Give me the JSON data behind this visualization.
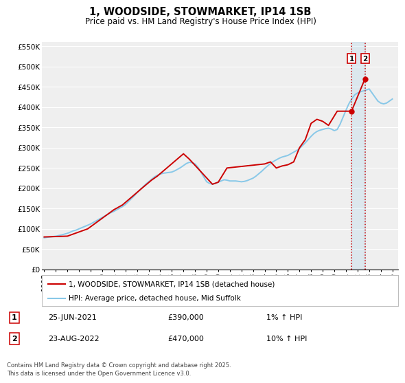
{
  "title": "1, WOODSIDE, STOWMARKET, IP14 1SB",
  "subtitle": "Price paid vs. HM Land Registry's House Price Index (HPI)",
  "xlim": [
    1994.8,
    2025.5
  ],
  "ylim": [
    0,
    560000
  ],
  "yticks": [
    0,
    50000,
    100000,
    150000,
    200000,
    250000,
    300000,
    350000,
    400000,
    450000,
    500000,
    550000
  ],
  "ytick_labels": [
    "£0",
    "£50K",
    "£100K",
    "£150K",
    "£200K",
    "£250K",
    "£300K",
    "£350K",
    "£400K",
    "£450K",
    "£500K",
    "£550K"
  ],
  "xticks": [
    1995,
    1996,
    1997,
    1998,
    1999,
    2000,
    2001,
    2002,
    2003,
    2004,
    2005,
    2006,
    2007,
    2008,
    2009,
    2010,
    2011,
    2012,
    2013,
    2014,
    2015,
    2016,
    2017,
    2018,
    2019,
    2020,
    2021,
    2022,
    2023,
    2024,
    2025
  ],
  "background_color": "#ffffff",
  "plot_bg_color": "#efefef",
  "grid_color": "#ffffff",
  "red_line_color": "#cc0000",
  "blue_line_color": "#88c8e8",
  "vline_color": "#cc0000",
  "event1_x": 2021.483,
  "event1_y": 390000,
  "event1_label": "1",
  "event2_x": 2022.644,
  "event2_y": 470000,
  "event2_label": "2",
  "legend_label_red": "1, WOODSIDE, STOWMARKET, IP14 1SB (detached house)",
  "legend_label_blue": "HPI: Average price, detached house, Mid Suffolk",
  "table_row1": [
    "1",
    "25-JUN-2021",
    "£390,000",
    "1% ↑ HPI"
  ],
  "table_row2": [
    "2",
    "23-AUG-2022",
    "£470,000",
    "10% ↑ HPI"
  ],
  "footnote": "Contains HM Land Registry data © Crown copyright and database right 2025.\nThis data is licensed under the Open Government Licence v3.0.",
  "hpi_x": [
    1995.0,
    1995.25,
    1995.5,
    1995.75,
    1996.0,
    1996.25,
    1996.5,
    1996.75,
    1997.0,
    1997.25,
    1997.5,
    1997.75,
    1998.0,
    1998.25,
    1998.5,
    1998.75,
    1999.0,
    1999.25,
    1999.5,
    1999.75,
    2000.0,
    2000.25,
    2000.5,
    2000.75,
    2001.0,
    2001.25,
    2001.5,
    2001.75,
    2002.0,
    2002.25,
    2002.5,
    2002.75,
    2003.0,
    2003.25,
    2003.5,
    2003.75,
    2004.0,
    2004.25,
    2004.5,
    2004.75,
    2005.0,
    2005.25,
    2005.5,
    2005.75,
    2006.0,
    2006.25,
    2006.5,
    2006.75,
    2007.0,
    2007.25,
    2007.5,
    2007.75,
    2008.0,
    2008.25,
    2008.5,
    2008.75,
    2009.0,
    2009.25,
    2009.5,
    2009.75,
    2010.0,
    2010.25,
    2010.5,
    2010.75,
    2011.0,
    2011.25,
    2011.5,
    2011.75,
    2012.0,
    2012.25,
    2012.5,
    2012.75,
    2013.0,
    2013.25,
    2013.5,
    2013.75,
    2014.0,
    2014.25,
    2014.5,
    2014.75,
    2015.0,
    2015.25,
    2015.5,
    2015.75,
    2016.0,
    2016.25,
    2016.5,
    2016.75,
    2017.0,
    2017.25,
    2017.5,
    2017.75,
    2018.0,
    2018.25,
    2018.5,
    2018.75,
    2019.0,
    2019.25,
    2019.5,
    2019.75,
    2020.0,
    2020.25,
    2020.5,
    2020.75,
    2021.0,
    2021.25,
    2021.5,
    2021.75,
    2022.0,
    2022.25,
    2022.5,
    2022.75,
    2023.0,
    2023.25,
    2023.5,
    2023.75,
    2024.0,
    2024.25,
    2024.5,
    2024.75,
    2025.0
  ],
  "hpi_y": [
    78000,
    79000,
    80000,
    81000,
    82000,
    83500,
    85000,
    87000,
    89000,
    92000,
    95000,
    97000,
    100000,
    103000,
    106000,
    109000,
    112000,
    116000,
    120000,
    124000,
    128000,
    132000,
    136000,
    140000,
    143000,
    147000,
    151000,
    155000,
    160000,
    167000,
    174000,
    181000,
    189000,
    196000,
    203000,
    210000,
    216000,
    222000,
    228000,
    232000,
    235000,
    237000,
    238000,
    239000,
    240000,
    243000,
    247000,
    251000,
    256000,
    261000,
    264000,
    263000,
    260000,
    252000,
    240000,
    228000,
    216000,
    212000,
    210000,
    212000,
    215000,
    218000,
    221000,
    220000,
    218000,
    218000,
    218000,
    217000,
    216000,
    217000,
    219000,
    222000,
    225000,
    230000,
    236000,
    242000,
    249000,
    255000,
    261000,
    266000,
    270000,
    274000,
    277000,
    279000,
    281000,
    285000,
    289000,
    293000,
    298000,
    305000,
    312000,
    320000,
    328000,
    335000,
    340000,
    343000,
    345000,
    347000,
    348000,
    346000,
    342000,
    345000,
    358000,
    375000,
    392000,
    408000,
    420000,
    430000,
    435000,
    438000,
    440000,
    442000,
    445000,
    435000,
    425000,
    415000,
    410000,
    408000,
    410000,
    415000,
    420000
  ],
  "price_x": [
    1995.0,
    1997.0,
    1998.75,
    2001.0,
    2001.75,
    2003.5,
    2004.25,
    2004.75,
    2007.0,
    2007.5,
    2009.5,
    2010.0,
    2010.75,
    2014.0,
    2014.5,
    2015.0,
    2015.5,
    2016.0,
    2016.5,
    2017.0,
    2017.5,
    2018.0,
    2018.5,
    2019.0,
    2019.5,
    2020.25,
    2021.483,
    2022.644
  ],
  "price_y": [
    80000,
    82000,
    100000,
    147000,
    159000,
    202000,
    220000,
    230000,
    285000,
    272000,
    210000,
    215000,
    250000,
    260000,
    265000,
    250000,
    255000,
    258000,
    265000,
    300000,
    320000,
    360000,
    370000,
    365000,
    355000,
    390000,
    390000,
    470000
  ]
}
